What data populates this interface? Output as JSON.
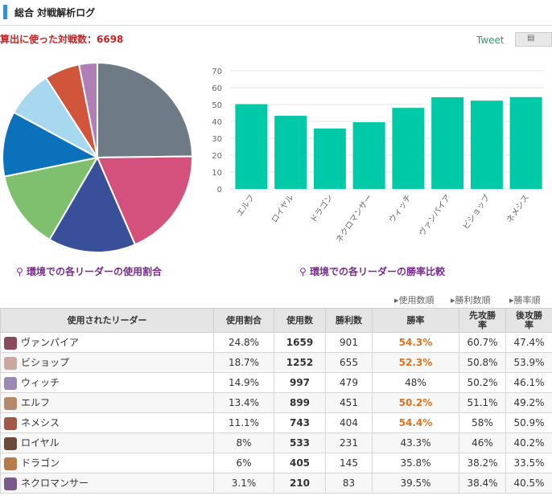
{
  "header": {
    "title": "総合 対戦解析ログ"
  },
  "total_battles": "算出に使った対戦数：6698",
  "tweet": {
    "label": "Tweet",
    "icon": "bookmark-icon"
  },
  "pie": {
    "caption": "環境での各リーダーの使用割合",
    "colors": [
      "#6e7b87",
      "#d4507d",
      "#3a4f9a",
      "#7ec06e",
      "#0c71bb",
      "#a8d7f0",
      "#d1553a",
      "#b07fb5"
    ]
  },
  "bar": {
    "caption": "環境での各リーダーの勝率比較",
    "color": "#00c9a7"
  },
  "chart_data": [
    {
      "type": "pie",
      "categories": [
        "ヴァンパイア",
        "ビショップ",
        "ウィッチ",
        "エルフ",
        "ネメシス",
        "ロイヤル",
        "ドラゴン",
        "ネクロマンサー"
      ],
      "values": [
        24.8,
        18.7,
        14.9,
        13.4,
        11.1,
        8,
        6,
        3.1
      ]
    },
    {
      "type": "bar",
      "categories": [
        "エルフ",
        "ロイヤル",
        "ドラゴン",
        "ネクロマンサー",
        "ウィッチ",
        "ヴァンパイア",
        "ビショップ",
        "ネメシス"
      ],
      "values": [
        50.2,
        43.3,
        35.8,
        39.5,
        48,
        54.3,
        52.3,
        54.4
      ],
      "ylim": [
        0,
        70
      ],
      "yticks": [
        0,
        10,
        20,
        30,
        40,
        50,
        60,
        70
      ],
      "grid": true
    }
  ],
  "sort": {
    "usage": "使用数順",
    "wins": "勝利数順",
    "rate": "勝率順"
  },
  "table": {
    "headers": [
      "使用されたリーダー",
      "使用割合",
      "使用数",
      "勝利数",
      "勝率",
      "先攻勝率",
      "後攻勝率"
    ],
    "rows": [
      {
        "name": "ヴァンパイア",
        "share": "24.8%",
        "uses": "1659",
        "wins": "901",
        "rate": "54.3%",
        "first": "60.7%",
        "second": "47.4%",
        "avatar": "#8a4a5c"
      },
      {
        "name": "ビショップ",
        "share": "18.7%",
        "uses": "1252",
        "wins": "655",
        "rate": "52.3%",
        "first": "50.8%",
        "second": "53.9%",
        "avatar": "#c9a8a0"
      },
      {
        "name": "ウィッチ",
        "share": "14.9%",
        "uses": "997",
        "wins": "479",
        "rate": "48%",
        "first": "50.2%",
        "second": "46.1%",
        "avatar": "#9a8ab5"
      },
      {
        "name": "エルフ",
        "share": "13.4%",
        "uses": "899",
        "wins": "451",
        "rate": "50.2%",
        "first": "51.1%",
        "second": "49.2%",
        "avatar": "#b58a6a"
      },
      {
        "name": "ネメシス",
        "share": "11.1%",
        "uses": "743",
        "wins": "404",
        "rate": "54.4%",
        "first": "58%",
        "second": "50.9%",
        "avatar": "#a05a4a"
      },
      {
        "name": "ロイヤル",
        "share": "8%",
        "uses": "533",
        "wins": "231",
        "rate": "43.3%",
        "first": "46%",
        "second": "40.2%",
        "avatar": "#6a4a3a"
      },
      {
        "name": "ドラゴン",
        "share": "6%",
        "uses": "405",
        "wins": "145",
        "rate": "35.8%",
        "first": "38.2%",
        "second": "33.5%",
        "avatar": "#b87a4a"
      },
      {
        "name": "ネクロマンサー",
        "share": "3.1%",
        "uses": "210",
        "wins": "83",
        "rate": "39.5%",
        "first": "38.4%",
        "second": "40.5%",
        "avatar": "#7a5a8a"
      }
    ]
  }
}
